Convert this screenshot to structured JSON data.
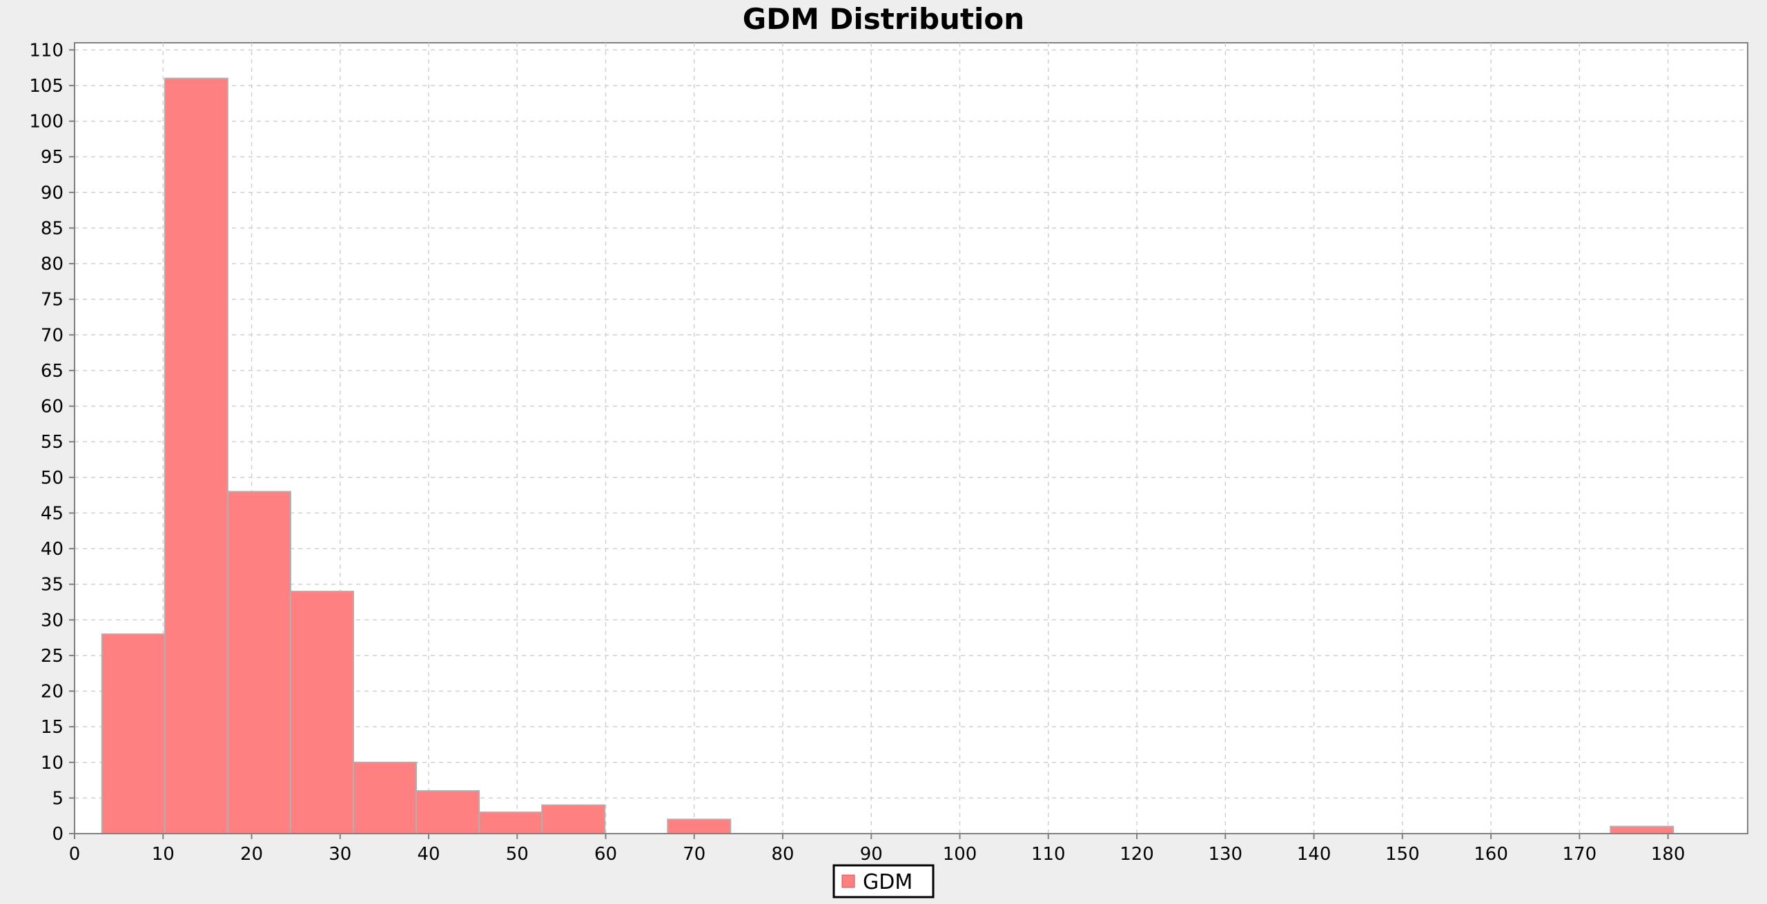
{
  "chart_data": {
    "type": "bar",
    "title": "GDM Distribution",
    "xlabel": "",
    "ylabel": "",
    "bin_edges": [
      3.1,
      10.2,
      17.3,
      24.4,
      31.5,
      38.6,
      45.7,
      52.8,
      59.9,
      67.0,
      74.1,
      81.2,
      88.3,
      95.4,
      102.5,
      109.6,
      116.7,
      123.8,
      130.9,
      138.0,
      145.1,
      152.2,
      159.3,
      166.4,
      173.5,
      180.6
    ],
    "values": [
      28,
      106,
      48,
      34,
      10,
      6,
      3,
      4,
      0,
      2,
      0,
      0,
      0,
      0,
      0,
      0,
      0,
      0,
      0,
      0,
      0,
      0,
      0,
      0,
      1
    ],
    "series": [
      {
        "name": "GDM",
        "color": "#ff8080"
      }
    ],
    "xlim": [
      0,
      189
    ],
    "ylim": [
      0,
      111
    ],
    "x_ticks": [
      0,
      10,
      20,
      30,
      40,
      50,
      60,
      70,
      80,
      90,
      100,
      110,
      120,
      130,
      140,
      150,
      160,
      170,
      180
    ],
    "y_ticks": [
      0,
      5,
      10,
      15,
      20,
      25,
      30,
      35,
      40,
      45,
      50,
      55,
      60,
      65,
      70,
      75,
      80,
      85,
      90,
      95,
      100,
      105,
      110
    ],
    "grid": true,
    "legend": "bottom-center"
  }
}
